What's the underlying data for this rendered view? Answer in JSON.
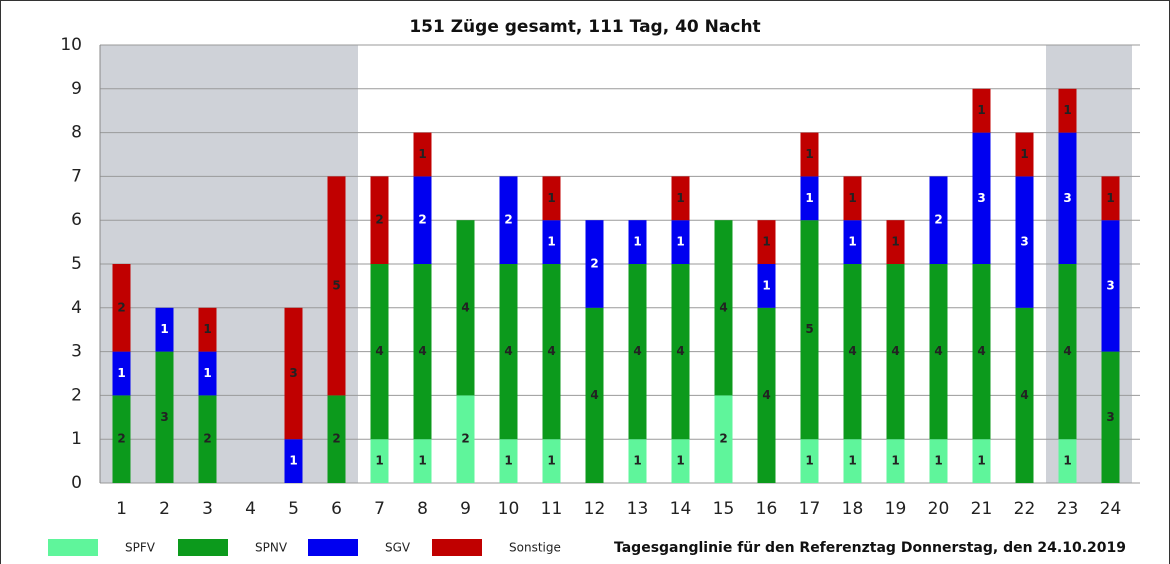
{
  "chart_data": {
    "type": "stacked_bar",
    "title": "151 Züge gesamt, 111 Tag, 40 Nacht",
    "note": "Tagesganglinie  für den Referenztag Donnerstag, den 24.10.2019",
    "categories": [
      "1",
      "2",
      "3",
      "4",
      "5",
      "6",
      "7",
      "8",
      "9",
      "10",
      "11",
      "12",
      "13",
      "14",
      "15",
      "16",
      "17",
      "18",
      "19",
      "20",
      "21",
      "22",
      "23",
      "24"
    ],
    "series": [
      {
        "name": "SPFV",
        "color": "#5ff59b",
        "values": [
          0,
          0,
          0,
          0,
          0,
          0,
          1,
          1,
          2,
          1,
          1,
          0,
          1,
          1,
          2,
          0,
          1,
          1,
          1,
          1,
          1,
          0,
          1,
          0
        ]
      },
      {
        "name": "SPNV",
        "color": "#0c9a1c",
        "values": [
          2,
          3,
          2,
          0,
          0,
          2,
          4,
          4,
          4,
          4,
          4,
          4,
          4,
          4,
          4,
          4,
          5,
          4,
          4,
          4,
          4,
          4,
          4,
          3
        ]
      },
      {
        "name": "SGV",
        "color": "#0000f0",
        "values": [
          1,
          1,
          1,
          0,
          1,
          0,
          0,
          2,
          0,
          2,
          1,
          2,
          1,
          1,
          0,
          1,
          1,
          1,
          0,
          2,
          3,
          3,
          3,
          3
        ]
      },
      {
        "name": "Sonstige",
        "color": "#c00000",
        "values": [
          2,
          0,
          1,
          0,
          3,
          5,
          2,
          1,
          0,
          0,
          1,
          0,
          0,
          1,
          0,
          1,
          1,
          1,
          1,
          0,
          1,
          1,
          1,
          1
        ]
      }
    ],
    "ylim": [
      0,
      10
    ],
    "yticks": [
      0,
      1,
      2,
      3,
      4,
      5,
      6,
      7,
      8,
      9,
      10
    ],
    "grid": true,
    "shaded_ranges": [
      [
        0,
        5
      ],
      [
        22,
        23
      ]
    ]
  }
}
